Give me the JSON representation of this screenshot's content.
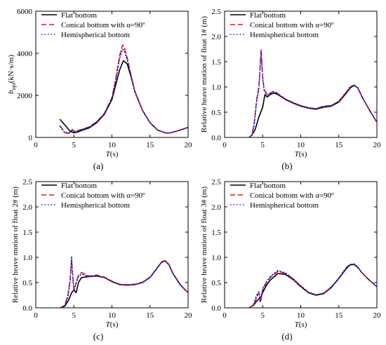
{
  "chart_data": [
    {
      "id": "a",
      "type": "line",
      "caption": "(a)",
      "xlabel_italic": "T",
      "xlabel_rest": "(s)",
      "ylabel_main": "b",
      "ylabel_sub": "opt",
      "ylabel_rest": "(kN·s/m)",
      "xlim": [
        0,
        20
      ],
      "ylim": [
        0,
        6000
      ],
      "xticks": [
        0,
        5,
        10,
        15,
        20
      ],
      "yticks": [
        0,
        2000,
        4000,
        6000
      ],
      "xtick_labels": [
        "0",
        "5",
        "10",
        "15",
        "20"
      ],
      "ytick_labels": [
        "0",
        "2000",
        "4000",
        "6000"
      ],
      "legend": [
        "Flat bottom",
        "Conical bottom with α=90º",
        "Hemispherical bottom"
      ],
      "series": [
        {
          "name": "Flat bottom",
          "color": "#000000",
          "dash": "solid",
          "x": [
            3.2,
            3.8,
            4.5,
            5.0,
            5.5,
            6.0,
            7.0,
            8.0,
            9.0,
            10.0,
            10.5,
            11.0,
            11.5,
            12.0,
            12.5,
            13.0,
            14.0,
            15.0,
            16.0,
            17.0,
            17.5,
            18.0,
            19.0,
            20.0
          ],
          "y": [
            850,
            600,
            300,
            220,
            260,
            330,
            450,
            700,
            1100,
            1800,
            2500,
            3200,
            3650,
            3500,
            2900,
            2200,
            1300,
            700,
            350,
            220,
            210,
            250,
            350,
            480
          ]
        },
        {
          "name": "Conical bottom with α=90º",
          "color": "#e8141c",
          "dash": "dashed",
          "x": [
            3.2,
            3.8,
            4.3,
            4.8,
            5.0,
            5.5,
            6.0,
            7.0,
            8.0,
            9.0,
            10.0,
            10.5,
            11.0,
            11.4,
            11.6,
            12.0,
            12.5,
            13.0,
            14.0,
            15.0,
            16.0,
            17.0,
            17.5,
            18.0,
            19.0,
            20.0
          ],
          "y": [
            550,
            250,
            200,
            380,
            300,
            330,
            380,
            500,
            750,
            1150,
            1900,
            2800,
            3900,
            4400,
            4300,
            3800,
            3000,
            2200,
            1300,
            700,
            350,
            220,
            210,
            250,
            360,
            480
          ]
        },
        {
          "name": "Hemispherical bottom",
          "color": "#1f1fc8",
          "dash": "dotted",
          "x": [
            3.2,
            3.8,
            4.3,
            4.8,
            5.0,
            5.5,
            6.0,
            7.0,
            8.0,
            9.0,
            10.0,
            10.5,
            11.0,
            11.4,
            11.6,
            12.0,
            12.5,
            13.0,
            14.0,
            15.0,
            16.0,
            17.0,
            17.5,
            18.0,
            19.0,
            20.0
          ],
          "y": [
            520,
            220,
            180,
            340,
            270,
            310,
            370,
            490,
            740,
            1130,
            1850,
            2700,
            3750,
            4200,
            4150,
            3700,
            2950,
            2150,
            1280,
            690,
            340,
            220,
            210,
            250,
            355,
            480
          ]
        }
      ]
    },
    {
      "id": "b",
      "type": "line",
      "caption": "(b)",
      "xlabel_italic": "T",
      "xlabel_rest": "(s)",
      "ylabel": "Relative heave motion of float 1# (m)",
      "xlim": [
        0,
        20
      ],
      "ylim": [
        0,
        2.5
      ],
      "xticks": [
        0,
        5,
        10,
        15,
        20
      ],
      "yticks": [
        0,
        0.5,
        1.0,
        1.5,
        2.0,
        2.5
      ],
      "xtick_labels": [
        "0",
        "5",
        "10",
        "15",
        "20"
      ],
      "ytick_labels": [
        "0.0",
        "0.5",
        "1.0",
        "1.5",
        "2.0",
        "2.5"
      ],
      "legend": [
        "Flat bottom",
        "Conical bottom with α=90º",
        "Hemispherical bottom"
      ],
      "series": [
        {
          "name": "Flat bottom",
          "color": "#000000",
          "dash": "solid",
          "x": [
            3.2,
            3.6,
            4.0,
            4.5,
            5.0,
            5.3,
            5.6,
            6.0,
            6.5,
            7.0,
            8.0,
            9.0,
            10.0,
            11.0,
            12.0,
            13.0,
            14.0,
            15.0,
            16.0,
            16.5,
            17.0,
            17.5,
            18.0,
            19.0,
            20.0
          ],
          "y": [
            0.0,
            0.05,
            0.15,
            0.4,
            0.6,
            0.85,
            0.8,
            0.85,
            0.88,
            0.85,
            0.75,
            0.68,
            0.62,
            0.58,
            0.56,
            0.6,
            0.62,
            0.7,
            0.88,
            0.98,
            1.03,
            0.98,
            0.82,
            0.55,
            0.3
          ]
        },
        {
          "name": "Conical bottom with α=90º",
          "color": "#e8141c",
          "dash": "dashed",
          "x": [
            3.2,
            3.6,
            3.9,
            4.2,
            4.5,
            4.7,
            4.8,
            5.0,
            5.2,
            5.4,
            5.6,
            6.0,
            6.5,
            7.0,
            8.0,
            9.0,
            10.0,
            11.0,
            12.0,
            13.0,
            14.0,
            15.0,
            16.0,
            16.5,
            17.0,
            17.5,
            18.0,
            19.0,
            20.0
          ],
          "y": [
            0.0,
            0.05,
            0.3,
            0.75,
            1.0,
            1.5,
            1.75,
            1.2,
            0.95,
            0.9,
            0.85,
            0.88,
            0.92,
            0.87,
            0.76,
            0.69,
            0.63,
            0.59,
            0.57,
            0.62,
            0.63,
            0.72,
            0.9,
            1.0,
            1.04,
            0.98,
            0.82,
            0.55,
            0.3
          ]
        },
        {
          "name": "Hemispherical bottom",
          "color": "#1f1fc8",
          "dash": "dotted",
          "x": [
            3.2,
            3.6,
            3.9,
            4.2,
            4.5,
            4.7,
            4.8,
            5.0,
            5.2,
            5.4,
            5.6,
            6.0,
            6.5,
            7.0,
            8.0,
            9.0,
            10.0,
            11.0,
            12.0,
            13.0,
            14.0,
            15.0,
            16.0,
            16.5,
            17.0,
            17.5,
            18.0,
            19.0,
            20.0
          ],
          "y": [
            0.0,
            0.04,
            0.25,
            0.7,
            0.95,
            1.45,
            1.7,
            1.15,
            0.93,
            0.88,
            0.84,
            0.87,
            0.91,
            0.86,
            0.76,
            0.69,
            0.63,
            0.59,
            0.57,
            0.62,
            0.63,
            0.72,
            0.9,
            1.0,
            1.04,
            0.98,
            0.82,
            0.55,
            0.3
          ]
        }
      ]
    },
    {
      "id": "c",
      "type": "line",
      "caption": "(c)",
      "xlabel_italic": "T",
      "xlabel_rest": "(s)",
      "ylabel": "Relative heave motion of float 2# (m)",
      "xlim": [
        0,
        20
      ],
      "ylim": [
        0,
        2.5
      ],
      "xticks": [
        0,
        5,
        10,
        15,
        20
      ],
      "yticks": [
        0,
        0.5,
        1.0,
        1.5,
        2.0,
        2.5
      ],
      "xtick_labels": [
        "0",
        "5",
        "10",
        "15",
        "20"
      ],
      "ytick_labels": [
        "0.0",
        "0.5",
        "1.0",
        "1.5",
        "2.0",
        "2.5"
      ],
      "legend": [
        "Flat bottom",
        "Conical bottom with α=90º",
        "Hemispherical bottom"
      ],
      "series": [
        {
          "name": "Flat bottom",
          "color": "#000000",
          "dash": "solid",
          "x": [
            3.2,
            3.8,
            4.3,
            4.7,
            5.0,
            5.3,
            5.6,
            6.0,
            7.0,
            8.0,
            9.0,
            10.0,
            11.0,
            12.0,
            13.0,
            14.0,
            15.0,
            16.0,
            16.5,
            17.0,
            17.5,
            18.0,
            19.0,
            20.0
          ],
          "y": [
            0.0,
            0.03,
            0.15,
            0.3,
            0.35,
            0.3,
            0.5,
            0.6,
            0.62,
            0.63,
            0.6,
            0.52,
            0.46,
            0.45,
            0.46,
            0.5,
            0.6,
            0.8,
            0.9,
            0.93,
            0.85,
            0.68,
            0.45,
            0.3
          ]
        },
        {
          "name": "Conical bottom with α=90º",
          "color": "#e8141c",
          "dash": "dashed",
          "x": [
            3.2,
            3.8,
            4.2,
            4.5,
            4.7,
            4.8,
            5.0,
            5.3,
            5.6,
            6.0,
            7.0,
            8.0,
            9.0,
            10.0,
            11.0,
            12.0,
            13.0,
            14.0,
            15.0,
            16.0,
            16.5,
            17.0,
            17.5,
            18.0,
            19.0,
            20.0
          ],
          "y": [
            0.0,
            0.05,
            0.25,
            0.55,
            0.95,
            0.7,
            0.35,
            0.5,
            0.65,
            0.7,
            0.63,
            0.65,
            0.61,
            0.53,
            0.47,
            0.46,
            0.47,
            0.51,
            0.61,
            0.81,
            0.91,
            0.94,
            0.86,
            0.69,
            0.46,
            0.3
          ]
        },
        {
          "name": "Hemispherical bottom",
          "color": "#1f1fc8",
          "dash": "dotted",
          "x": [
            3.2,
            3.8,
            4.2,
            4.5,
            4.7,
            4.8,
            5.0,
            5.3,
            5.6,
            6.0,
            7.0,
            8.0,
            9.0,
            10.0,
            11.0,
            12.0,
            13.0,
            14.0,
            15.0,
            16.0,
            16.5,
            17.0,
            17.5,
            18.0,
            19.0,
            20.0
          ],
          "y": [
            0.0,
            0.04,
            0.2,
            0.5,
            1.02,
            0.75,
            0.33,
            0.48,
            0.62,
            0.67,
            0.62,
            0.64,
            0.6,
            0.52,
            0.46,
            0.45,
            0.46,
            0.5,
            0.6,
            0.8,
            0.9,
            0.93,
            0.85,
            0.68,
            0.45,
            0.3
          ]
        }
      ]
    },
    {
      "id": "d",
      "type": "line",
      "caption": "(d)",
      "xlabel_italic": "T",
      "xlabel_rest": "(s)",
      "ylabel": "Relative heave motion of float 3# (m)",
      "xlim": [
        0,
        20
      ],
      "ylim": [
        0,
        2.5
      ],
      "xticks": [
        0,
        5,
        10,
        15,
        20
      ],
      "yticks": [
        0,
        0.5,
        1.0,
        1.5,
        2.0,
        2.5
      ],
      "xtick_labels": [
        "0",
        "5",
        "10",
        "15",
        "20"
      ],
      "ytick_labels": [
        "0.0",
        "0.5",
        "1.0",
        "1.5",
        "2.0",
        "2.5"
      ],
      "legend": [
        "Flat bottom",
        "Conical bottom with α=90º",
        "Hemispherical bottom"
      ],
      "series": [
        {
          "name": "Flat bottom",
          "color": "#000000",
          "dash": "solid",
          "x": [
            3.2,
            3.8,
            4.3,
            4.7,
            5.0,
            5.5,
            6.0,
            7.0,
            8.0,
            9.0,
            10.0,
            11.0,
            12.0,
            13.0,
            14.0,
            15.0,
            16.0,
            16.5,
            17.0,
            17.5,
            18.0,
            19.0,
            20.0
          ],
          "y": [
            0.0,
            0.05,
            0.15,
            0.2,
            0.3,
            0.45,
            0.55,
            0.68,
            0.66,
            0.56,
            0.42,
            0.3,
            0.25,
            0.28,
            0.4,
            0.58,
            0.78,
            0.85,
            0.86,
            0.8,
            0.7,
            0.55,
            0.42
          ]
        },
        {
          "name": "Conical bottom with α=90º",
          "color": "#e8141c",
          "dash": "dashed",
          "x": [
            3.2,
            3.8,
            4.2,
            4.5,
            4.7,
            5.0,
            5.5,
            6.0,
            7.0,
            8.0,
            9.0,
            10.0,
            11.0,
            12.0,
            13.0,
            14.0,
            15.0,
            16.0,
            16.5,
            17.0,
            17.5,
            18.0,
            19.0,
            20.0
          ],
          "y": [
            0.0,
            0.05,
            0.2,
            0.3,
            0.1,
            0.35,
            0.5,
            0.6,
            0.72,
            0.68,
            0.57,
            0.43,
            0.31,
            0.26,
            0.29,
            0.41,
            0.59,
            0.8,
            0.86,
            0.87,
            0.81,
            0.7,
            0.55,
            0.42
          ]
        },
        {
          "name": "Hemispherical bottom",
          "color": "#1f1fc8",
          "dash": "dotted",
          "x": [
            3.2,
            3.8,
            4.2,
            4.5,
            4.7,
            5.0,
            5.5,
            6.0,
            7.0,
            8.0,
            9.0,
            10.0,
            11.0,
            12.0,
            13.0,
            14.0,
            15.0,
            16.0,
            16.5,
            17.0,
            17.5,
            18.0,
            19.0,
            20.0
          ],
          "y": [
            0.0,
            0.06,
            0.25,
            0.32,
            0.12,
            0.38,
            0.52,
            0.62,
            0.74,
            0.69,
            0.58,
            0.44,
            0.31,
            0.26,
            0.29,
            0.41,
            0.59,
            0.8,
            0.86,
            0.87,
            0.81,
            0.7,
            0.55,
            0.42
          ]
        }
      ]
    }
  ]
}
